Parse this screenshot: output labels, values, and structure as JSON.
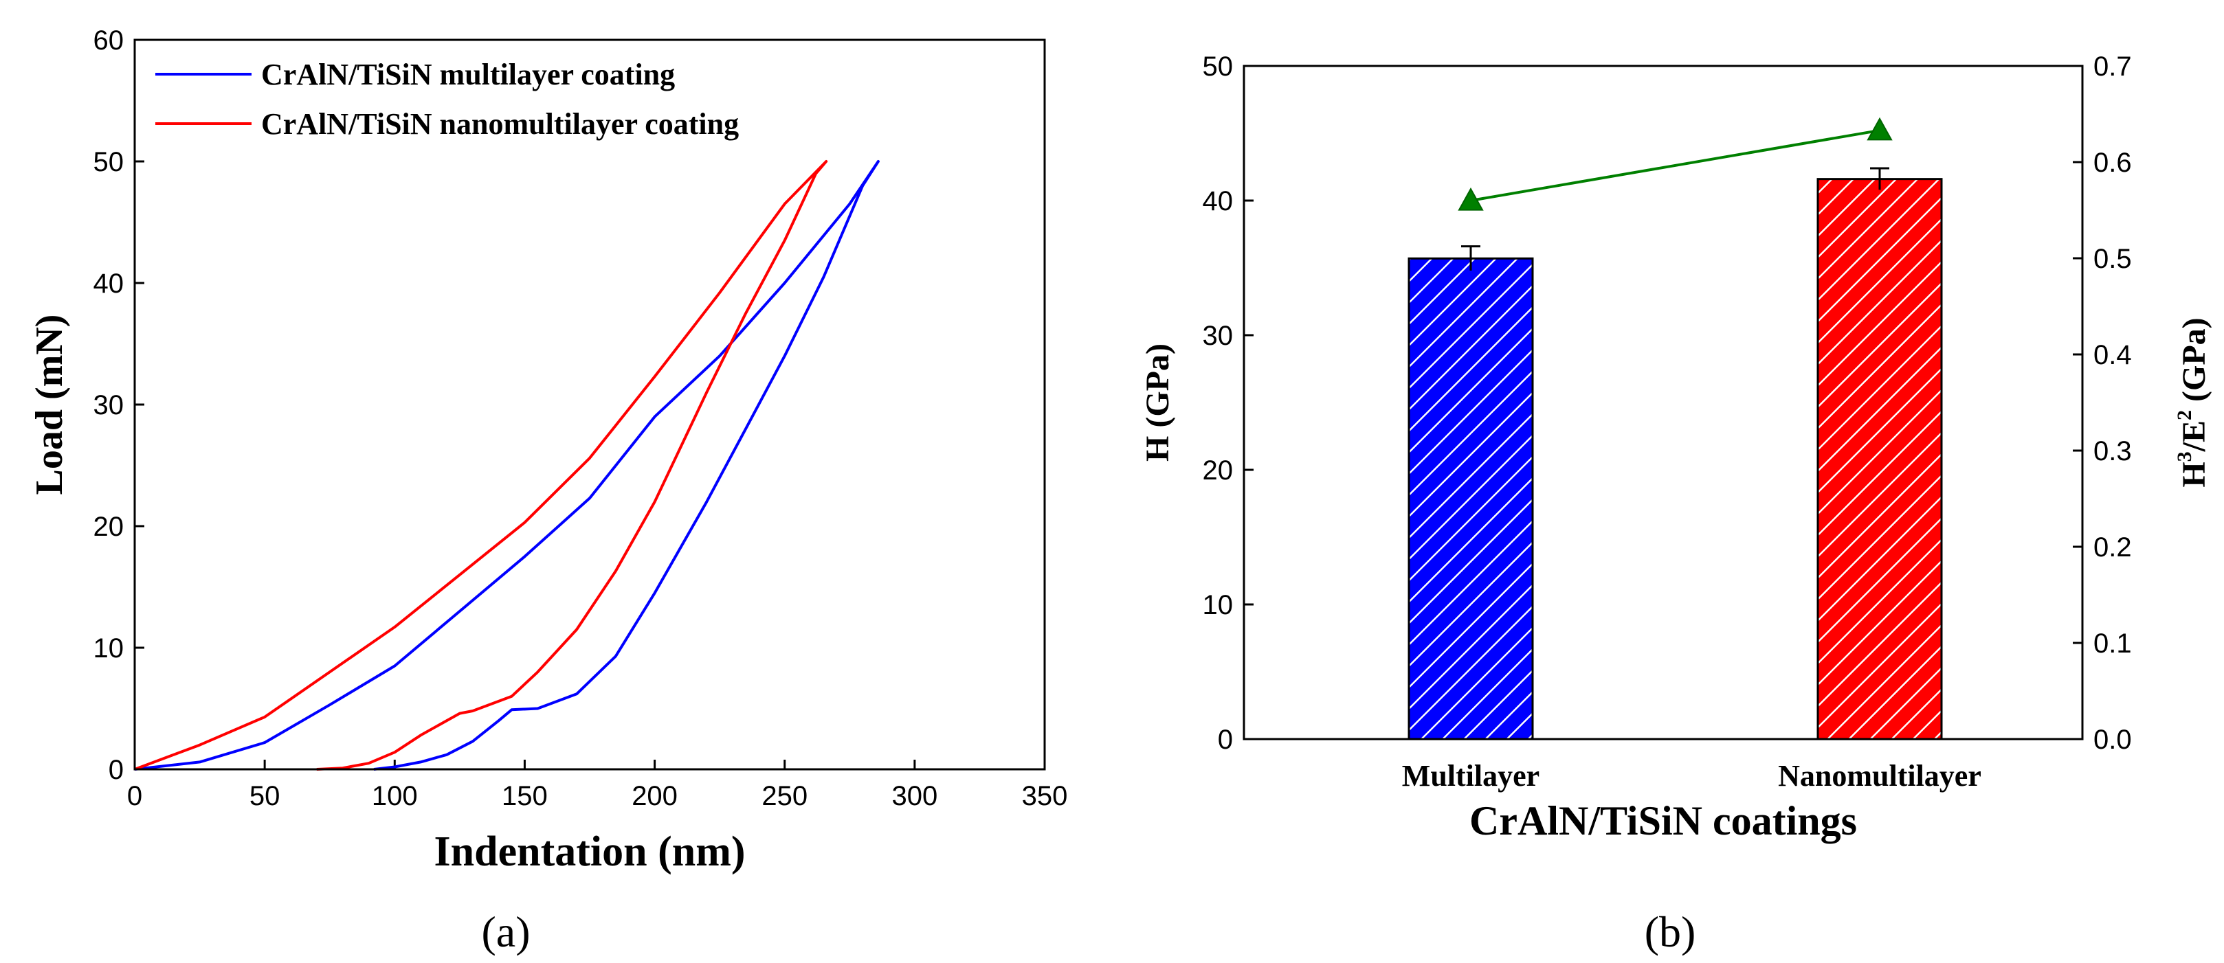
{
  "chart_data": [
    {
      "panel_label": "(a)",
      "type": "line",
      "title": "",
      "xlabel": "Indentation (nm)",
      "ylabel": "Load (mN)",
      "xlim": [
        0,
        350
      ],
      "ylim": [
        0,
        60
      ],
      "xticks": [
        0,
        50,
        100,
        150,
        200,
        250,
        300,
        350
      ],
      "yticks": [
        0,
        10,
        20,
        30,
        40,
        50,
        60
      ],
      "grid": false,
      "legend_position": "top-left",
      "series": [
        {
          "name": "CrAlN/TiSiN multilayer coating",
          "color": "#0000ff",
          "x": [
            0,
            25,
            50,
            75,
            100,
            125,
            150,
            175,
            200,
            225,
            250,
            275,
            286,
            280,
            265,
            250,
            235,
            220,
            200,
            185,
            170,
            155,
            145,
            140,
            130,
            120,
            110,
            100,
            92
          ],
          "y": [
            0,
            0.6,
            2.2,
            5.3,
            8.5,
            13,
            17.5,
            22.3,
            29,
            34,
            40,
            46.5,
            50,
            48,
            40.5,
            34,
            28,
            22,
            14.5,
            9.3,
            6.2,
            5,
            4.9,
            4,
            2.3,
            1.2,
            0.6,
            0.2,
            0
          ]
        },
        {
          "name": "CrAlN/TiSiN nanomultilayer coating",
          "color": "#ff0000",
          "x": [
            0,
            25,
            50,
            75,
            100,
            125,
            150,
            175,
            200,
            225,
            250,
            266,
            262,
            250,
            235,
            220,
            200,
            185,
            170,
            155,
            145,
            130,
            125,
            110,
            100,
            90,
            80,
            70
          ],
          "y": [
            0,
            2,
            4.3,
            8,
            11.7,
            16,
            20.3,
            25.6,
            32.3,
            39.2,
            46.5,
            50,
            49,
            43.5,
            37.5,
            31,
            22,
            16.3,
            11.5,
            8,
            6,
            4.8,
            4.6,
            2.8,
            1.4,
            0.5,
            0.1,
            0
          ]
        }
      ]
    },
    {
      "panel_label": "(b)",
      "type": "bar",
      "title": "",
      "xlabel": "CrAlN/TiSiN coatings",
      "ylabel": "H (GPa)",
      "y2label_base": "H",
      "y2label_sup1": "3",
      "y2label_mid": "/E",
      "y2label_sup2": "2",
      "y2label_tail": " (GPa)",
      "ylim": [
        0,
        50
      ],
      "y2lim": [
        0,
        0.7
      ],
      "yticks": [
        0,
        10,
        20,
        30,
        40,
        50
      ],
      "y2ticks": [
        "0.0",
        "0.1",
        "0.2",
        "0.3",
        "0.4",
        "0.5",
        "0.6",
        "0.7"
      ],
      "categories": [
        "Multilayer",
        "Nanomultilayer"
      ],
      "bar_series": {
        "name": "H",
        "values": [
          35.7,
          41.6
        ],
        "errors": [
          0.9,
          0.8
        ],
        "colors": [
          "#0000ff",
          "#ff0000"
        ]
      },
      "line_series": {
        "name": "H3/E2",
        "axis": "right",
        "values": [
          0.56,
          0.633
        ],
        "color": "#008000"
      }
    }
  ]
}
